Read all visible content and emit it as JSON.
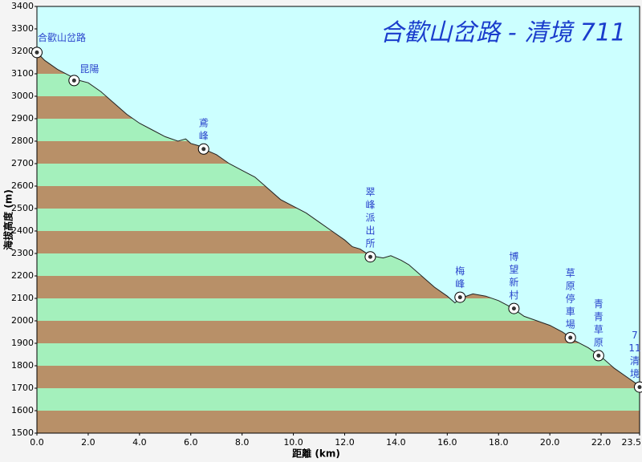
{
  "chart_data": {
    "type": "elevation-profile",
    "title": "合歡山岔路 - 清境 711",
    "x_label": "距離 (km)",
    "y_label": "海拔高度 (m)",
    "xlim": [
      0,
      23.5
    ],
    "ylim": [
      1500,
      3400
    ],
    "xticks": [
      {
        "value": 0,
        "label": "0.0"
      },
      {
        "value": 2,
        "label": "2.0"
      },
      {
        "value": 4,
        "label": "4.0"
      },
      {
        "value": 6,
        "label": "6.0"
      },
      {
        "value": 8,
        "label": "8.0"
      },
      {
        "value": 10,
        "label": "10.0"
      },
      {
        "value": 12,
        "label": "12.0"
      },
      {
        "value": 14,
        "label": "14.0"
      },
      {
        "value": 16,
        "label": "16.0"
      },
      {
        "value": 18,
        "label": "18.0"
      },
      {
        "value": 20,
        "label": "20.0"
      },
      {
        "value": 22,
        "label": "22.0"
      },
      23.5
    ],
    "yticks": [
      1500,
      1600,
      1700,
      1800,
      1900,
      2000,
      2100,
      2200,
      2300,
      2400,
      2500,
      2600,
      2700,
      2800,
      2900,
      3000,
      3100,
      3200,
      3300,
      3400
    ],
    "sky_color": "#ccffff",
    "band_colors": [
      "#b89068",
      "#a4f0bc"
    ],
    "profile": {
      "distance": [
        0,
        0.3,
        0.8,
        1.3,
        1.5,
        2.0,
        2.5,
        3.0,
        3.5,
        4.0,
        4.5,
        5.0,
        5.5,
        5.8,
        6.0,
        6.3,
        6.6,
        7.0,
        7.5,
        8.0,
        8.5,
        9.0,
        9.5,
        10.0,
        10.5,
        11.0,
        11.5,
        12.0,
        12.3,
        12.6,
        13.0,
        13.5,
        13.8,
        14.2,
        14.5,
        15.0,
        15.5,
        16.0,
        16.3,
        16.5,
        17.0,
        17.5,
        18.0,
        18.5,
        19.0,
        19.5,
        20.0,
        20.5,
        21.0,
        21.5,
        22.0,
        22.5,
        23.0,
        23.5
      ],
      "elevation": [
        3195,
        3160,
        3120,
        3090,
        3075,
        3060,
        3020,
        2970,
        2920,
        2880,
        2850,
        2820,
        2800,
        2810,
        2790,
        2780,
        2760,
        2740,
        2700,
        2670,
        2640,
        2590,
        2540,
        2510,
        2480,
        2440,
        2400,
        2360,
        2330,
        2320,
        2290,
        2280,
        2290,
        2270,
        2250,
        2200,
        2150,
        2110,
        2080,
        2100,
        2120,
        2110,
        2090,
        2060,
        2020,
        2000,
        1980,
        1950,
        1910,
        1880,
        1840,
        1790,
        1750,
        1710
      ]
    },
    "waypoints": [
      {
        "lines": [
          "合歡山岔路"
        ],
        "distance": 0,
        "elevation": 3195
      },
      {
        "lines": [
          "昆陽"
        ],
        "distance": 1.45,
        "elevation": 3070
      },
      {
        "lines": [
          "鳶",
          "峰"
        ],
        "distance": 6.5,
        "elevation": 2765
      },
      {
        "lines": [
          "翠",
          "峰",
          "派",
          "出",
          "所"
        ],
        "distance": 13.0,
        "elevation": 2285
      },
      {
        "lines": [
          "梅",
          "峰"
        ],
        "distance": 16.5,
        "elevation": 2105
      },
      {
        "lines": [
          "博",
          "望",
          "新",
          "村"
        ],
        "distance": 18.6,
        "elevation": 2055
      },
      {
        "lines": [
          "草",
          "原",
          "停",
          "車",
          "場"
        ],
        "distance": 20.8,
        "elevation": 1925
      },
      {
        "lines": [
          "青",
          "青",
          "草",
          "原"
        ],
        "distance": 21.9,
        "elevation": 1845
      },
      {
        "lines": [
          "7",
          "11",
          "清",
          "境"
        ],
        "distance": 23.5,
        "elevation": 1705
      }
    ]
  }
}
